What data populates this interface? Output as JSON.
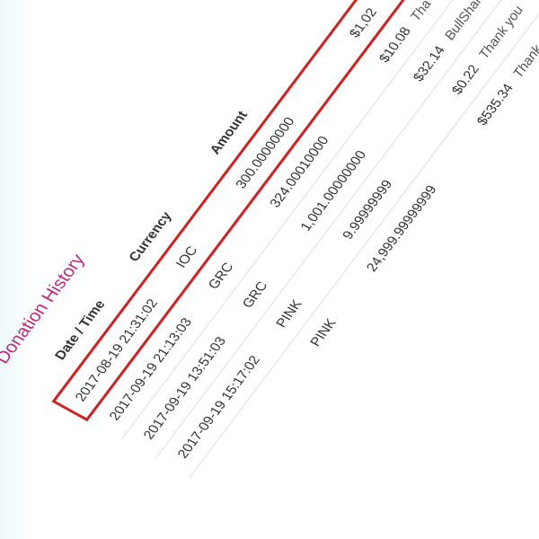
{
  "title": "Donation History",
  "table": {
    "headers": [
      "Date / Time",
      "Currency",
      "Amount"
    ],
    "rows": [
      [
        "2017-08-19 21:31:02",
        "IOC",
        "300.00000000",
        "$1,02",
        null
      ],
      [
        "2017-09-19 21:13:03",
        "GRC",
        "324.00010000",
        "$10.08",
        "Tha"
      ],
      [
        "2017-09-19 13:51:03",
        "GRC",
        "1,001.00000000",
        "$32.14",
        "BullShark"
      ],
      [
        "2017-09-19 15:17:02",
        "PINK",
        "9.99999999",
        "$0.22",
        "Thank you"
      ],
      [
        null,
        "PINK",
        "24,999.99999999",
        "$535.34",
        "Thank you"
      ]
    ]
  }
}
